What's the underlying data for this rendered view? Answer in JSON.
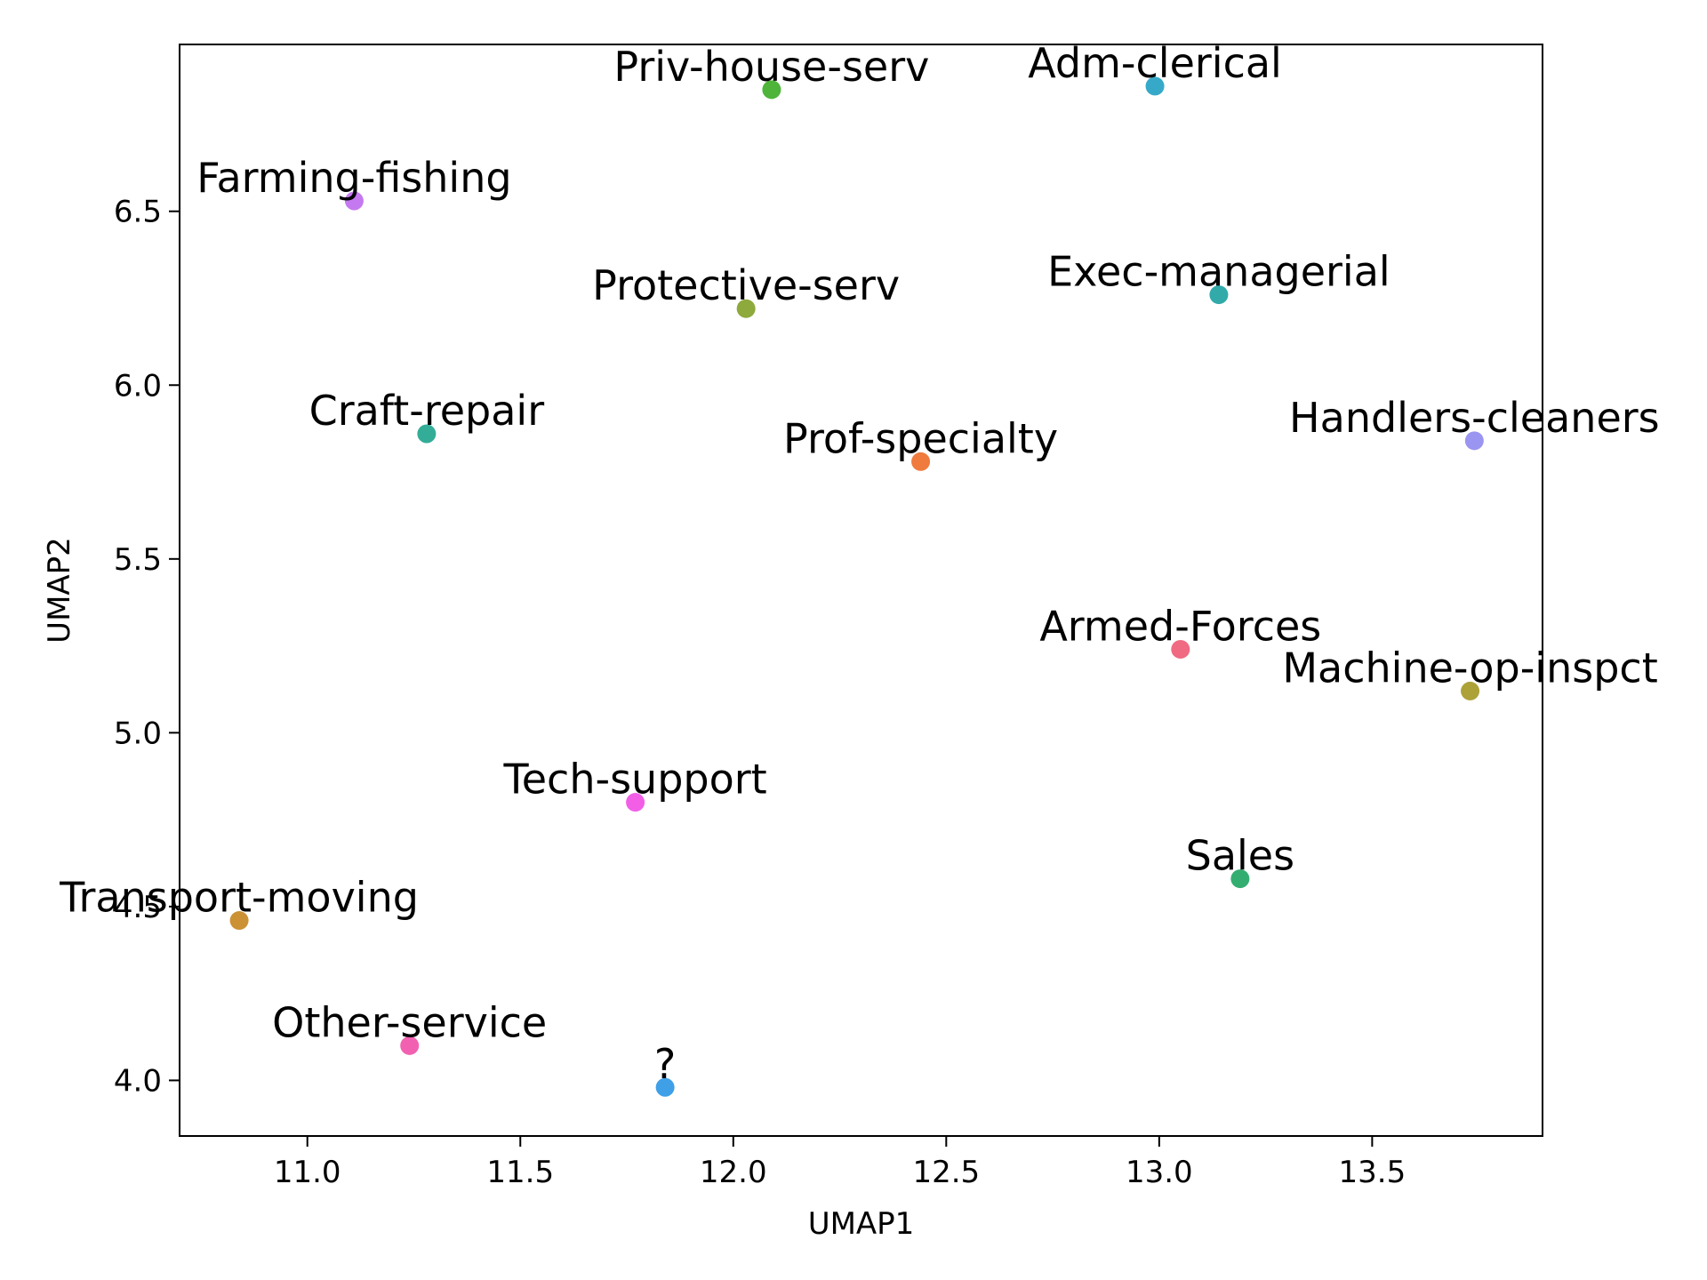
{
  "chart_data": {
    "type": "scatter",
    "title": "",
    "xlabel": "UMAP1",
    "ylabel": "UMAP2",
    "xlim": [
      10.7,
      13.9
    ],
    "ylim": [
      3.84,
      6.98
    ],
    "xticks": [
      11.0,
      11.5,
      12.0,
      12.5,
      13.0,
      13.5
    ],
    "yticks": [
      4.0,
      4.5,
      5.0,
      5.5,
      6.0,
      6.5
    ],
    "xtick_labels": [
      "11.0",
      "11.5",
      "12.0",
      "12.5",
      "13.0",
      "13.5"
    ],
    "ytick_labels": [
      "4.0",
      "4.5",
      "5.0",
      "5.5",
      "6.0",
      "6.5"
    ],
    "grid": false,
    "legend": "none",
    "points": [
      {
        "label": "Priv-house-serv",
        "x": 12.09,
        "y": 6.85,
        "color": "#4eb43a"
      },
      {
        "label": "Adm-clerical",
        "x": 12.99,
        "y": 6.86,
        "color": "#36a9c9"
      },
      {
        "label": "Farming-fishing",
        "x": 11.11,
        "y": 6.53,
        "color": "#c479f0"
      },
      {
        "label": "Protective-serv",
        "x": 12.03,
        "y": 6.22,
        "color": "#8ea93c"
      },
      {
        "label": "Exec-managerial",
        "x": 13.14,
        "y": 6.26,
        "color": "#32aaaa"
      },
      {
        "label": "Craft-repair",
        "x": 11.28,
        "y": 5.86,
        "color": "#33ad98"
      },
      {
        "label": "Prof-specialty",
        "x": 12.44,
        "y": 5.78,
        "color": "#f07b3e"
      },
      {
        "label": "Handlers-cleaners",
        "x": 13.74,
        "y": 5.84,
        "color": "#9a95f0"
      },
      {
        "label": "Armed-Forces",
        "x": 13.05,
        "y": 5.24,
        "color": "#f06a82"
      },
      {
        "label": "Machine-op-inspct",
        "x": 13.73,
        "y": 5.12,
        "color": "#ada238"
      },
      {
        "label": "Tech-support",
        "x": 11.77,
        "y": 4.8,
        "color": "#f25fe6"
      },
      {
        "label": "Sales",
        "x": 13.19,
        "y": 4.58,
        "color": "#34ae70"
      },
      {
        "label": "Transport-moving",
        "x": 10.84,
        "y": 4.46,
        "color": "#cc9134"
      },
      {
        "label": "Other-service",
        "x": 11.24,
        "y": 4.1,
        "color": "#f261b1"
      },
      {
        "label": "?",
        "x": 11.84,
        "y": 3.98,
        "color": "#3fa0e8"
      }
    ]
  }
}
